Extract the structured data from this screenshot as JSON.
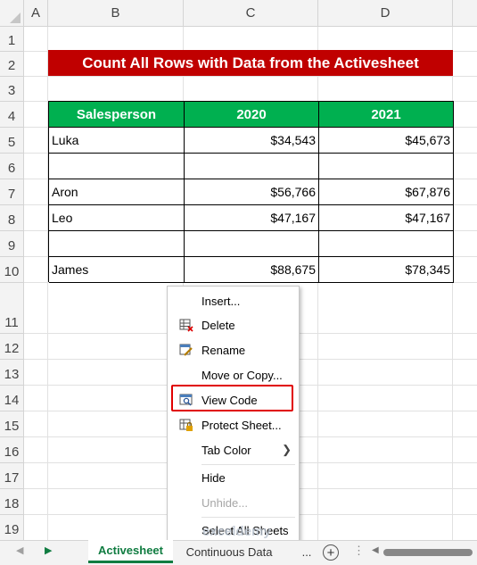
{
  "columns": [
    "A",
    "B",
    "C",
    "D"
  ],
  "rows": [
    "1",
    "2",
    "3",
    "4",
    "5",
    "6",
    "7",
    "8",
    "9",
    "10",
    "11",
    "12",
    "13",
    "14",
    "15",
    "16",
    "17",
    "18",
    "19"
  ],
  "title": "Count All Rows with Data from the Activesheet",
  "table": {
    "headers": [
      "Salesperson",
      "2020",
      "2021"
    ],
    "rows": [
      {
        "name": "Luka",
        "y2020": "$34,543",
        "y2021": "$45,673"
      },
      {
        "name": "",
        "y2020": "",
        "y2021": ""
      },
      {
        "name": "Aron",
        "y2020": "$56,766",
        "y2021": "$67,876"
      },
      {
        "name": "Leo",
        "y2020": "$47,167",
        "y2021": "$47,167"
      },
      {
        "name": "",
        "y2020": "",
        "y2021": ""
      },
      {
        "name": "James",
        "y2020": "$88,675",
        "y2021": "$78,345"
      }
    ]
  },
  "context_menu": {
    "insert": "Insert...",
    "delete": "Delete",
    "rename": "Rename",
    "move_copy": "Move or Copy...",
    "view_code": "View Code",
    "protect": "Protect Sheet...",
    "tab_color": "Tab Color",
    "hide": "Hide",
    "unhide": "Unhide...",
    "select_all": "Select All Sheets"
  },
  "sheets": {
    "active": "Activesheet",
    "other": "Continuous Data",
    "more": "..."
  },
  "watermark": "exceldemy",
  "colors": {
    "title_bg": "#c00000",
    "header_bg": "#00b050",
    "highlight": "#e00000",
    "tab_accent": "#107c41"
  }
}
